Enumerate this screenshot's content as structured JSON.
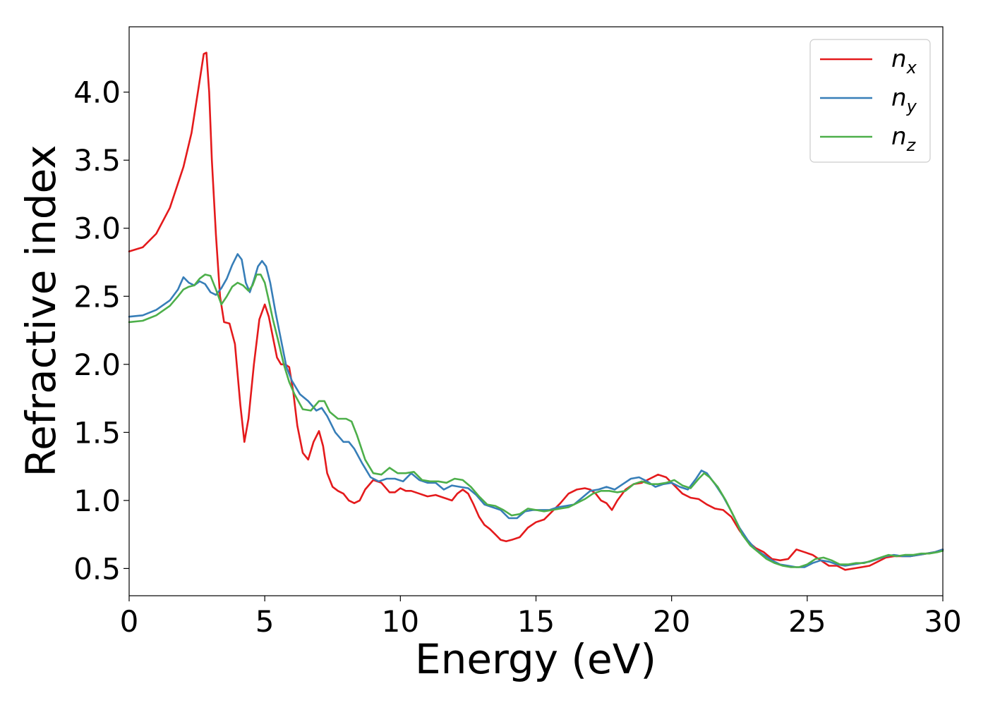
{
  "chart_data": {
    "type": "line",
    "title": "",
    "xlabel": "Energy (eV)",
    "ylabel": "Refractive index",
    "xlim": [
      0,
      30
    ],
    "ylim": [
      0.3,
      4.48
    ],
    "xticks": [
      0,
      5,
      10,
      15,
      20,
      25,
      30
    ],
    "xtick_labels": [
      "0",
      "5",
      "10",
      "15",
      "20",
      "25",
      "30"
    ],
    "yticks": [
      0.5,
      1.0,
      1.5,
      2.0,
      2.5,
      3.0,
      3.5,
      4.0
    ],
    "ytick_labels": [
      "0.5",
      "1.0",
      "1.5",
      "2.0",
      "2.5",
      "3.0",
      "3.5",
      "4.0"
    ],
    "grid": false,
    "legend_position": "top-right",
    "series": [
      {
        "name": "n_x",
        "legend_base": "n",
        "legend_sub": "x",
        "color": "#e41a1c",
        "x": [
          0,
          0.5,
          1,
          1.5,
          2,
          2.3,
          2.55,
          2.75,
          2.85,
          2.95,
          3.05,
          3.2,
          3.35,
          3.5,
          3.7,
          3.9,
          4.1,
          4.25,
          4.4,
          4.6,
          4.8,
          5.0,
          5.15,
          5.3,
          5.45,
          5.6,
          5.75,
          5.9,
          6.05,
          6.2,
          6.4,
          6.6,
          6.8,
          7.0,
          7.15,
          7.3,
          7.5,
          7.7,
          7.9,
          8.1,
          8.3,
          8.5,
          8.7,
          9.0,
          9.3,
          9.6,
          9.8,
          10.0,
          10.2,
          10.4,
          10.7,
          11.0,
          11.3,
          11.6,
          11.9,
          12.1,
          12.3,
          12.5,
          12.7,
          12.9,
          13.1,
          13.3,
          13.5,
          13.7,
          13.9,
          14.1,
          14.4,
          14.7,
          15.0,
          15.3,
          15.6,
          15.9,
          16.2,
          16.5,
          16.8,
          17.0,
          17.2,
          17.4,
          17.6,
          17.8,
          18.0,
          18.3,
          18.6,
          18.9,
          19.2,
          19.5,
          19.8,
          20.1,
          20.4,
          20.7,
          21.0,
          21.3,
          21.6,
          21.9,
          22.2,
          22.5,
          22.8,
          23.1,
          23.4,
          23.7,
          24.0,
          24.3,
          24.6,
          24.9,
          25.2,
          25.5,
          25.8,
          26.1,
          26.4,
          26.7,
          27.0,
          27.3,
          27.6,
          27.9,
          28.2,
          28.5,
          28.8,
          29.1,
          29.4,
          29.7,
          30.0
        ],
        "y": [
          2.83,
          2.86,
          2.96,
          3.15,
          3.45,
          3.7,
          4.02,
          4.28,
          4.29,
          4.0,
          3.5,
          2.95,
          2.5,
          2.31,
          2.3,
          2.15,
          1.7,
          1.43,
          1.6,
          2.0,
          2.33,
          2.44,
          2.35,
          2.2,
          2.05,
          2.0,
          2.0,
          1.98,
          1.8,
          1.55,
          1.35,
          1.3,
          1.43,
          1.51,
          1.4,
          1.2,
          1.1,
          1.07,
          1.05,
          1.0,
          0.98,
          1.0,
          1.08,
          1.15,
          1.13,
          1.06,
          1.06,
          1.09,
          1.07,
          1.07,
          1.05,
          1.03,
          1.04,
          1.02,
          1.0,
          1.05,
          1.08,
          1.05,
          0.97,
          0.88,
          0.82,
          0.79,
          0.75,
          0.71,
          0.7,
          0.71,
          0.73,
          0.8,
          0.84,
          0.86,
          0.92,
          0.98,
          1.05,
          1.08,
          1.09,
          1.08,
          1.05,
          1.0,
          0.98,
          0.93,
          1.0,
          1.08,
          1.12,
          1.13,
          1.16,
          1.19,
          1.17,
          1.11,
          1.05,
          1.02,
          1.01,
          0.97,
          0.94,
          0.93,
          0.88,
          0.78,
          0.7,
          0.65,
          0.62,
          0.57,
          0.56,
          0.57,
          0.64,
          0.62,
          0.6,
          0.56,
          0.52,
          0.52,
          0.49,
          0.5,
          0.51,
          0.52,
          0.55,
          0.58,
          0.59,
          0.59,
          0.59,
          0.6,
          0.61,
          0.62,
          0.64
        ]
      },
      {
        "name": "n_y",
        "legend_base": "n",
        "legend_sub": "y",
        "color": "#377eb8",
        "x": [
          0,
          0.5,
          1,
          1.5,
          1.8,
          2.0,
          2.2,
          2.4,
          2.6,
          2.8,
          3.0,
          3.2,
          3.4,
          3.6,
          3.8,
          4.0,
          4.15,
          4.3,
          4.45,
          4.6,
          4.75,
          4.9,
          5.05,
          5.2,
          5.4,
          5.6,
          5.8,
          6.0,
          6.3,
          6.6,
          6.9,
          7.1,
          7.3,
          7.6,
          7.9,
          8.1,
          8.3,
          8.6,
          8.9,
          9.2,
          9.5,
          9.8,
          10.1,
          10.4,
          10.7,
          11.0,
          11.3,
          11.6,
          11.9,
          12.2,
          12.5,
          12.8,
          13.1,
          13.4,
          13.7,
          14.0,
          14.3,
          14.6,
          14.9,
          15.2,
          15.5,
          15.8,
          16.1,
          16.4,
          16.7,
          17.0,
          17.3,
          17.6,
          17.9,
          18.2,
          18.5,
          18.8,
          19.1,
          19.4,
          19.7,
          20.0,
          20.3,
          20.6,
          20.9,
          21.1,
          21.3,
          21.6,
          21.9,
          22.2,
          22.5,
          22.8,
          23.1,
          23.4,
          23.7,
          24.0,
          24.3,
          24.6,
          24.9,
          25.2,
          25.5,
          25.8,
          26.1,
          26.4,
          26.7,
          27.0,
          27.3,
          27.6,
          27.9,
          28.2,
          28.5,
          28.8,
          29.1,
          29.4,
          29.7,
          30.0
        ],
        "y": [
          2.35,
          2.36,
          2.4,
          2.47,
          2.55,
          2.64,
          2.6,
          2.58,
          2.61,
          2.59,
          2.53,
          2.51,
          2.56,
          2.63,
          2.73,
          2.81,
          2.77,
          2.6,
          2.53,
          2.62,
          2.72,
          2.76,
          2.72,
          2.6,
          2.38,
          2.18,
          1.98,
          1.88,
          1.78,
          1.73,
          1.66,
          1.68,
          1.62,
          1.5,
          1.43,
          1.43,
          1.38,
          1.27,
          1.17,
          1.14,
          1.16,
          1.16,
          1.14,
          1.2,
          1.15,
          1.13,
          1.13,
          1.08,
          1.11,
          1.1,
          1.09,
          1.04,
          0.97,
          0.95,
          0.93,
          0.87,
          0.87,
          0.92,
          0.93,
          0.93,
          0.93,
          0.95,
          0.96,
          0.97,
          1.02,
          1.07,
          1.08,
          1.1,
          1.08,
          1.12,
          1.16,
          1.17,
          1.14,
          1.1,
          1.12,
          1.13,
          1.1,
          1.08,
          1.16,
          1.22,
          1.2,
          1.12,
          1.03,
          0.92,
          0.8,
          0.71,
          0.64,
          0.6,
          0.56,
          0.53,
          0.52,
          0.51,
          0.51,
          0.54,
          0.56,
          0.55,
          0.53,
          0.52,
          0.53,
          0.54,
          0.55,
          0.57,
          0.59,
          0.6,
          0.59,
          0.59,
          0.6,
          0.61,
          0.62,
          0.64
        ]
      },
      {
        "name": "n_z",
        "legend_base": "n",
        "legend_sub": "z",
        "color": "#4daf4a",
        "x": [
          0,
          0.5,
          1,
          1.5,
          1.8,
          2.0,
          2.2,
          2.4,
          2.6,
          2.8,
          3.0,
          3.2,
          3.4,
          3.6,
          3.8,
          4.0,
          4.2,
          4.4,
          4.55,
          4.7,
          4.85,
          5.0,
          5.15,
          5.3,
          5.5,
          5.7,
          5.9,
          6.1,
          6.4,
          6.7,
          7.0,
          7.2,
          7.4,
          7.7,
          8.0,
          8.2,
          8.4,
          8.7,
          9.0,
          9.3,
          9.6,
          9.9,
          10.2,
          10.5,
          10.8,
          11.1,
          11.4,
          11.7,
          12.0,
          12.3,
          12.6,
          12.9,
          13.2,
          13.5,
          13.8,
          14.1,
          14.4,
          14.7,
          15.0,
          15.3,
          15.6,
          15.9,
          16.2,
          16.5,
          16.8,
          17.1,
          17.4,
          17.7,
          18.0,
          18.3,
          18.6,
          18.9,
          19.2,
          19.5,
          19.8,
          20.1,
          20.4,
          20.7,
          21.0,
          21.2,
          21.4,
          21.7,
          22.0,
          22.3,
          22.6,
          22.9,
          23.2,
          23.5,
          23.8,
          24.1,
          24.4,
          24.7,
          25.0,
          25.3,
          25.6,
          25.9,
          26.2,
          26.5,
          26.8,
          27.1,
          27.4,
          27.7,
          28.0,
          28.3,
          28.6,
          28.9,
          29.2,
          29.5,
          29.8,
          30.0
        ],
        "y": [
          2.31,
          2.32,
          2.36,
          2.43,
          2.5,
          2.55,
          2.57,
          2.58,
          2.63,
          2.66,
          2.65,
          2.55,
          2.44,
          2.5,
          2.57,
          2.6,
          2.58,
          2.54,
          2.58,
          2.66,
          2.66,
          2.6,
          2.47,
          2.33,
          2.17,
          2.0,
          1.87,
          1.78,
          1.67,
          1.66,
          1.73,
          1.73,
          1.65,
          1.6,
          1.6,
          1.58,
          1.48,
          1.3,
          1.2,
          1.19,
          1.24,
          1.2,
          1.2,
          1.21,
          1.15,
          1.14,
          1.14,
          1.13,
          1.16,
          1.15,
          1.1,
          1.03,
          0.97,
          0.96,
          0.93,
          0.89,
          0.9,
          0.94,
          0.93,
          0.92,
          0.93,
          0.94,
          0.95,
          0.98,
          1.01,
          1.05,
          1.07,
          1.07,
          1.06,
          1.07,
          1.12,
          1.14,
          1.12,
          1.12,
          1.13,
          1.15,
          1.11,
          1.09,
          1.16,
          1.2,
          1.17,
          1.1,
          1.0,
          0.88,
          0.75,
          0.67,
          0.62,
          0.57,
          0.54,
          0.52,
          0.51,
          0.51,
          0.53,
          0.57,
          0.58,
          0.56,
          0.53,
          0.53,
          0.54,
          0.54,
          0.56,
          0.58,
          0.6,
          0.59,
          0.6,
          0.6,
          0.61,
          0.61,
          0.62,
          0.63
        ]
      }
    ]
  }
}
